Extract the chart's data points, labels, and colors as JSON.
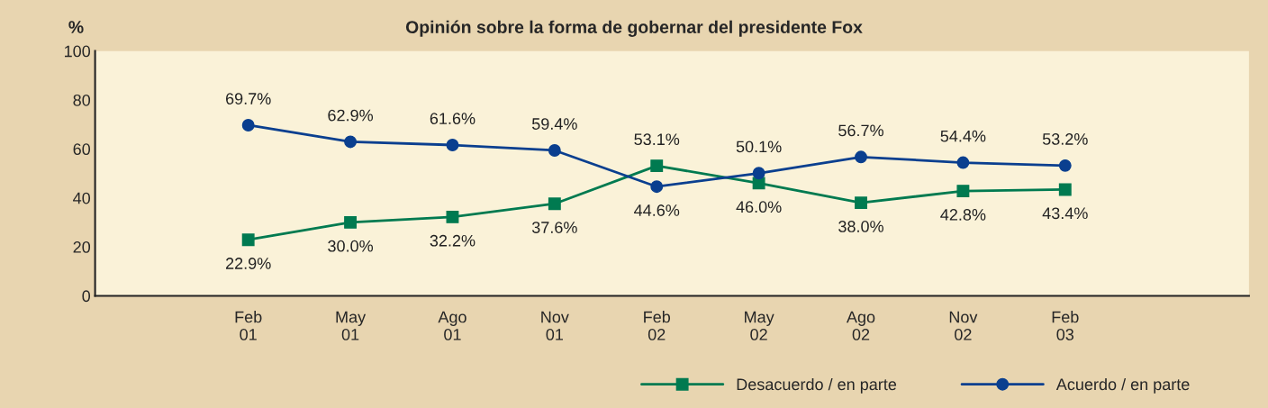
{
  "chart_data": {
    "type": "line",
    "title": "Opinión sobre la forma de gobernar del presidente Fox",
    "ylabel": "%",
    "categories": [
      "Feb\n01",
      "May\n01",
      "Ago\n01",
      "Nov\n01",
      "Feb\n02",
      "May\n02",
      "Ago\n02",
      "Nov\n02",
      "Feb\n03"
    ],
    "series": [
      {
        "name": "Desacuerdo / en parte",
        "color": "#007a50",
        "marker": "square",
        "values": [
          22.9,
          30.0,
          32.2,
          37.6,
          53.1,
          46.0,
          38.0,
          42.8,
          43.4
        ],
        "value_labels": [
          "22.9%",
          "30.0%",
          "32.2%",
          "37.6%",
          "53.1%",
          "46.0%",
          "38.0%",
          "42.8%",
          "43.4%"
        ]
      },
      {
        "name": "Acuerdo / en parte",
        "color": "#0a3f8f",
        "marker": "circle",
        "values": [
          69.7,
          62.9,
          61.6,
          59.4,
          44.6,
          50.1,
          56.7,
          54.4,
          53.2
        ],
        "value_labels": [
          "69.7%",
          "62.9%",
          "61.6%",
          "59.4%",
          "44.6%",
          "50.1%",
          "56.7%",
          "54.4%",
          "53.2%"
        ]
      }
    ],
    "ylim": [
      0,
      100
    ],
    "yticks": [
      0,
      20,
      40,
      60,
      80,
      100
    ],
    "grid": false,
    "legend": "bottom",
    "line_style": "solid"
  }
}
